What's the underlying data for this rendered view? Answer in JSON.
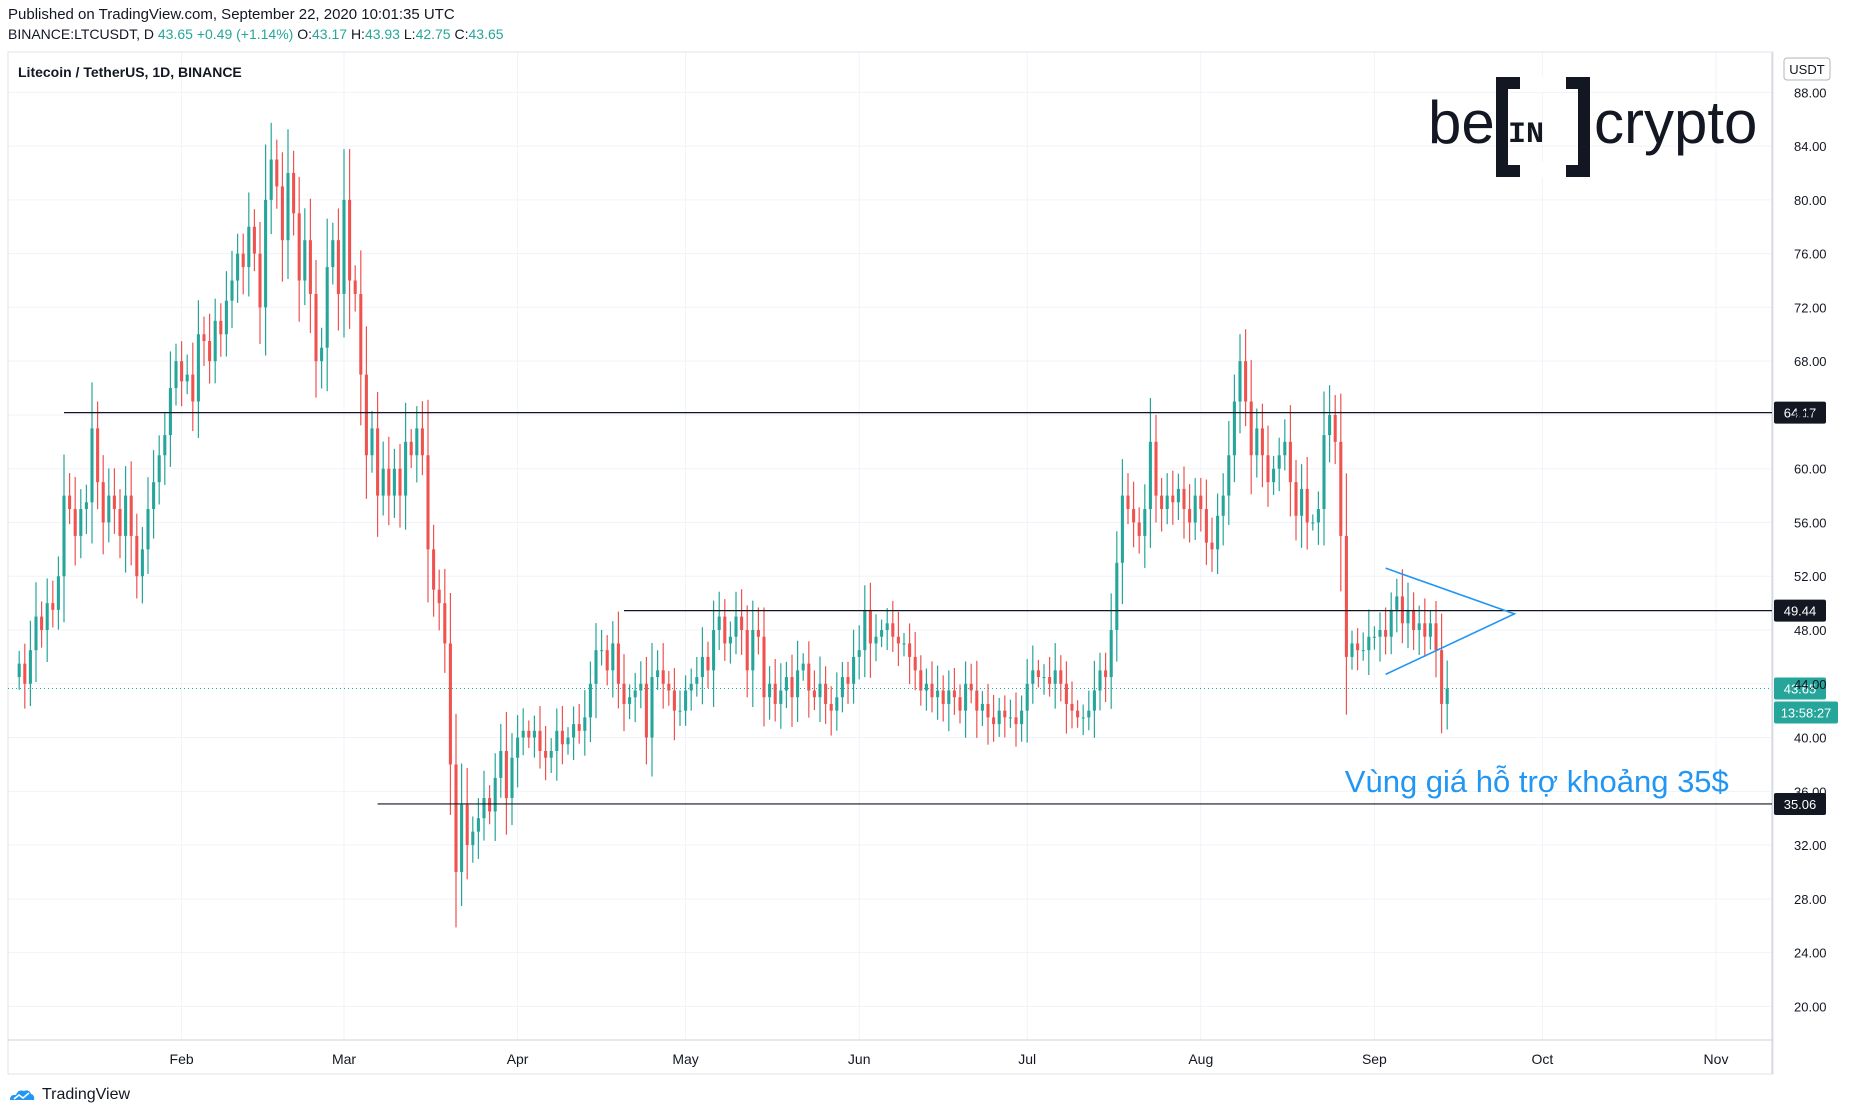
{
  "header": {
    "published": "Published on TradingView.com, September 22, 2020 10:01:35 UTC",
    "symbol": "BINANCE:LTCUSDT, D",
    "last": "43.65",
    "change": "+0.49 (+1.14%)",
    "o_label": "O:",
    "o": "43.17",
    "h_label": "H:",
    "h": "43.93",
    "l_label": "L:",
    "l": "42.75",
    "c_label": "C:",
    "c": "43.65"
  },
  "footer": {
    "brand": "TradingView"
  },
  "colors": {
    "up": "#26a69a",
    "down": "#ef5350",
    "line": "#131722",
    "triangle": "#2196f3",
    "annotation": "#2196f3"
  },
  "chart_data": {
    "type": "candlestick",
    "title": "Litecoin / TetherUS, 1D, BINANCE",
    "currency": "USDT",
    "ylim": [
      17.5,
      91
    ],
    "y_ticks": [
      "88.00",
      "84.00",
      "80.00",
      "76.00",
      "72.00",
      "68.00",
      "64.00",
      "60.00",
      "56.00",
      "52.00",
      "48.00",
      "44.00",
      "40.00",
      "36.00",
      "32.00",
      "28.00",
      "24.00",
      "20.00"
    ],
    "x_ticks": [
      "Feb",
      "Mar",
      "Apr",
      "May",
      "Jun",
      "Jul",
      "Aug",
      "Sep",
      "Oct",
      "Nov"
    ],
    "x_start": "2020-01-01",
    "x_end": "2020-11-11",
    "levels": [
      {
        "value": 64.17,
        "label": "64.17",
        "from": "2020-01-11"
      },
      {
        "value": 49.44,
        "label": "49.44",
        "from": "2020-04-20"
      },
      {
        "value": 35.06,
        "label": "35.06",
        "from": "2020-03-07"
      }
    ],
    "current_price": {
      "value": 43.65,
      "label": "43.65",
      "countdown": "13:58:27"
    },
    "annotation": {
      "text": "Vùng giá hỗ trợ khoảng 35$",
      "value": 37.0,
      "date": "2020-09-30"
    },
    "triangle": [
      {
        "date": "2020-09-03",
        "value": 52.6
      },
      {
        "date": "2020-09-26",
        "value": 49.2
      },
      {
        "date": "2020-09-03",
        "value": 44.7
      }
    ],
    "closes": [
      45.5,
      44.0,
      46.5,
      49.0,
      48.0,
      50.0,
      49.5,
      52.0,
      58.0,
      57.0,
      55.0,
      57.0,
      57.5,
      63.0,
      59.0,
      56.0,
      58.0,
      57.0,
      55.0,
      58.0,
      55.0,
      52.0,
      54.0,
      57.0,
      59.0,
      61.0,
      62.5,
      66.0,
      68.0,
      66.5,
      67.0,
      65.0,
      70.0,
      69.5,
      68.0,
      71.0,
      70.0,
      72.5,
      74.0,
      76.0,
      75.0,
      78.0,
      76.0,
      72.0,
      80.0,
      83.0,
      81.0,
      77.0,
      82.0,
      79.0,
      74.0,
      77.0,
      73.0,
      68.0,
      69.0,
      75.0,
      77.0,
      73.0,
      80.0,
      74.0,
      73.0,
      67.0,
      61.0,
      63.0,
      58.0,
      60.0,
      58.0,
      60.0,
      58.0,
      62.0,
      61.0,
      63.0,
      61.0,
      54.0,
      51.0,
      50.0,
      47.0,
      38.0,
      30.0,
      35.0,
      32.0,
      33.0,
      34.0,
      35.5,
      34.5,
      37.0,
      39.0,
      35.5,
      38.5,
      40.0,
      40.5,
      40.0,
      40.5,
      39.0,
      38.5,
      39.0,
      40.5,
      39.5,
      40.0,
      41.0,
      40.5,
      41.5,
      44.0,
      46.5,
      46.5,
      45.0,
      47.0,
      44.0,
      42.5,
      43.0,
      43.5,
      44.0,
      40.0,
      44.5,
      45.0,
      44.0,
      43.5,
      42.0,
      42.0,
      43.5,
      44.0,
      44.5,
      46.0,
      45.0,
      48.0,
      49.0,
      47.0,
      47.5,
      49.0,
      48.0,
      45.0,
      48.0,
      47.5,
      43.0,
      44.0,
      42.5,
      43.5,
      44.5,
      43.0,
      45.0,
      45.5,
      43.5,
      43.0,
      44.0,
      42.5,
      42.0,
      43.0,
      44.5,
      44.0,
      46.0,
      46.5,
      49.5,
      47.0,
      47.5,
      48.0,
      48.5,
      47.5,
      47.0,
      47.0,
      46.0,
      45.0,
      43.5,
      44.0,
      43.0,
      43.5,
      42.5,
      43.5,
      43.0,
      42.0,
      44.0,
      43.5,
      42.0,
      42.5,
      41.5,
      41.0,
      42.0,
      41.5,
      41.5,
      41.0,
      42.0,
      44.0,
      45.0,
      44.5,
      44.5,
      44.0,
      45.0,
      44.0,
      42.5,
      42.0,
      41.5,
      41.5,
      42.0,
      43.5,
      45.0,
      44.5,
      48.0,
      53.0,
      58.0,
      57.0,
      56.0,
      55.0,
      57.0,
      62.0,
      58.0,
      57.0,
      58.0,
      57.5,
      58.5,
      57.0,
      56.0,
      58.0,
      57.0,
      54.5,
      54.0,
      56.5,
      58.0,
      61.0,
      65.0,
      68.0,
      65.0,
      61.0,
      63.0,
      61.0,
      59.0,
      60.0,
      61.0,
      62.0,
      59.0,
      56.5,
      58.5,
      56.0,
      56.0,
      57.0,
      62.5,
      64.0,
      62.0,
      55.0,
      46.0,
      47.0,
      46.5,
      46.5,
      47.5,
      47.5,
      48.0,
      47.5,
      49.5,
      50.5,
      48.5,
      49.5,
      48.0,
      48.5,
      47.5,
      48.5,
      46.5,
      42.5,
      43.65
    ],
    "x_offset_days": 2,
    "date_ticks": [
      "2020-02-01",
      "2020-03-01",
      "2020-04-01",
      "2020-05-01",
      "2020-06-01",
      "2020-07-01",
      "2020-08-01",
      "2020-09-01",
      "2020-10-01",
      "2020-11-01"
    ]
  }
}
